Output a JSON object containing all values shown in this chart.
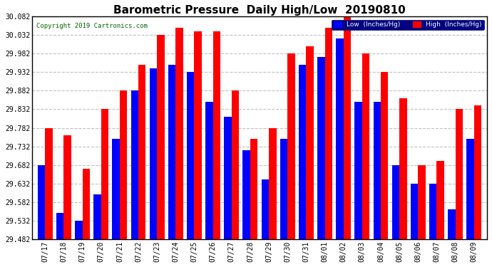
{
  "title": "Barometric Pressure  Daily High/Low  20190810",
  "copyright": "Copyright 2019 Cartronics.com",
  "legend_low": "Low  (Inches/Hg)",
  "legend_high": "High  (Inches/Hg)",
  "dates": [
    "07/17",
    "07/18",
    "07/19",
    "07/20",
    "07/21",
    "07/22",
    "07/23",
    "07/24",
    "07/25",
    "07/26",
    "07/27",
    "07/28",
    "07/29",
    "07/30",
    "07/31",
    "08/01",
    "08/02",
    "08/03",
    "08/04",
    "08/05",
    "08/06",
    "08/07",
    "08/08",
    "08/09"
  ],
  "low_values": [
    29.682,
    29.552,
    29.532,
    29.602,
    29.752,
    29.882,
    29.942,
    29.952,
    29.932,
    29.852,
    29.812,
    29.722,
    29.642,
    29.752,
    29.952,
    29.972,
    30.022,
    29.852,
    29.852,
    29.682,
    29.632,
    29.632,
    29.562,
    29.752
  ],
  "high_values": [
    29.782,
    29.762,
    29.672,
    29.832,
    29.882,
    29.952,
    30.032,
    30.052,
    30.042,
    30.042,
    29.882,
    29.752,
    29.782,
    29.982,
    30.002,
    30.052,
    30.082,
    29.982,
    29.932,
    29.862,
    29.682,
    29.692,
    29.832,
    29.842
  ],
  "ymin": 29.482,
  "ymax": 30.082,
  "yticks": [
    29.482,
    29.532,
    29.582,
    29.632,
    29.682,
    29.732,
    29.782,
    29.832,
    29.882,
    29.932,
    29.982,
    30.032,
    30.082
  ],
  "low_color": "#0000ff",
  "high_color": "#ff0000",
  "background_color": "#ffffff",
  "grid_color": "#c0c0c0",
  "title_fontsize": 11,
  "tick_fontsize": 7,
  "bar_width": 0.4
}
